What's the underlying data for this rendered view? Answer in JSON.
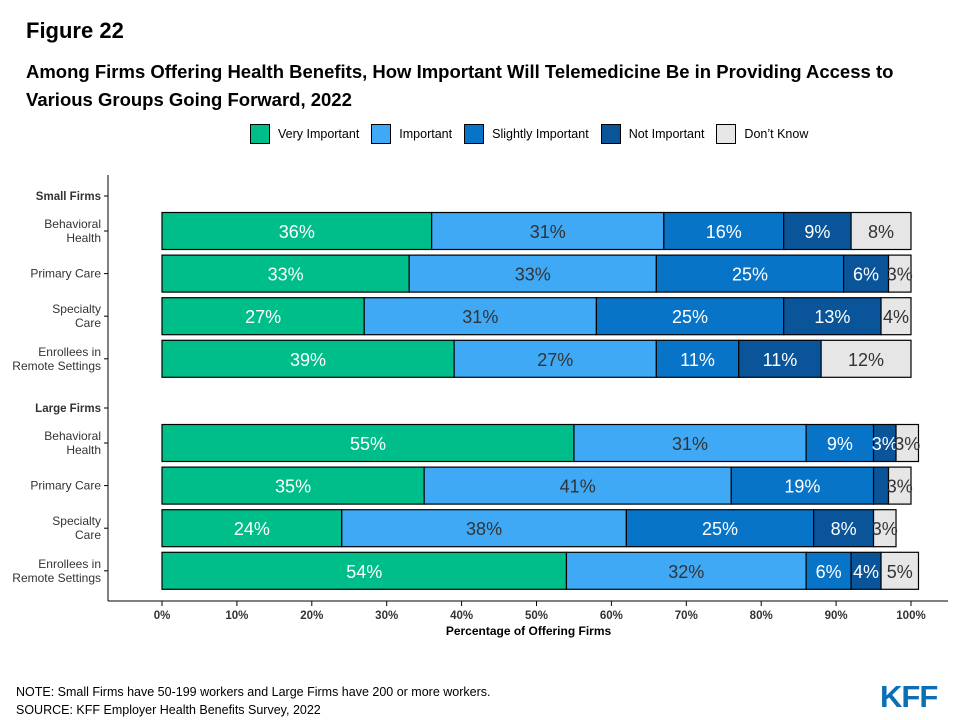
{
  "figure_label": "Figure 22",
  "title": "Among Firms Offering Health Benefits, How Important Will Telemedicine Be in Providing Access to Various Groups Going Forward, 2022",
  "note": "NOTE: Small Firms have 50-199 workers and Large Firms have 200 or more workers.",
  "source": "SOURCE: KFF Employer Health Benefits Survey, 2022",
  "logo_text": "KFF",
  "colors": {
    "Very Important": "#00be8a",
    "Important": "#3fa9f5",
    "Slightly Important": "#0874c8",
    "Not Important": "#0a549a",
    "Don't Know": "#e6e6e6"
  },
  "chart_data": {
    "type": "bar",
    "orientation": "horizontal",
    "stacked": true,
    "xlabel": "Percentage of Offering Firms",
    "xlim": [
      0,
      100
    ],
    "x_ticks": [
      "0%",
      "10%",
      "20%",
      "30%",
      "40%",
      "50%",
      "60%",
      "70%",
      "80%",
      "90%",
      "100%"
    ],
    "grid": false,
    "legend_position": "top",
    "groups": [
      {
        "name": "Small Firms",
        "categories": [
          "Behavioral Health",
          "Primary Care",
          "Specialty Care",
          "Enrollees in Remote Settings"
        ]
      },
      {
        "name": "Large Firms",
        "categories": [
          "Behavioral Health",
          "Primary Care",
          "Specialty Care",
          "Enrollees in Remote Settings"
        ]
      }
    ],
    "series": [
      {
        "name": "Very Important",
        "values": [
          36,
          33,
          27,
          39,
          55,
          35,
          24,
          54
        ],
        "labels": [
          "36%",
          "33%",
          "27%",
          "39%",
          "55%",
          "35%",
          "24%",
          "54%"
        ]
      },
      {
        "name": "Important",
        "values": [
          31,
          33,
          31,
          27,
          31,
          41,
          38,
          32
        ],
        "labels": [
          "31%",
          "33%",
          "31%",
          "27%",
          "31%",
          "41%",
          "38%",
          "32%"
        ]
      },
      {
        "name": "Slightly Important",
        "values": [
          16,
          25,
          25,
          11,
          9,
          19,
          25,
          6
        ],
        "labels": [
          "16%",
          "25%",
          "25%",
          "11%",
          "9%",
          "19%",
          "25%",
          "6%"
        ]
      },
      {
        "name": "Not Important",
        "values": [
          9,
          6,
          13,
          11,
          3,
          2,
          8,
          4
        ],
        "labels": [
          "9%",
          "6%",
          "13%",
          "11%",
          "3%",
          "",
          "8%",
          "4%"
        ]
      },
      {
        "name": "Don’t Know",
        "values": [
          8,
          3,
          4,
          12,
          3,
          3,
          3,
          5
        ],
        "labels": [
          "8%",
          "3%",
          "4%",
          "12%",
          "3%",
          "3%",
          "3%",
          "5%"
        ]
      }
    ]
  }
}
